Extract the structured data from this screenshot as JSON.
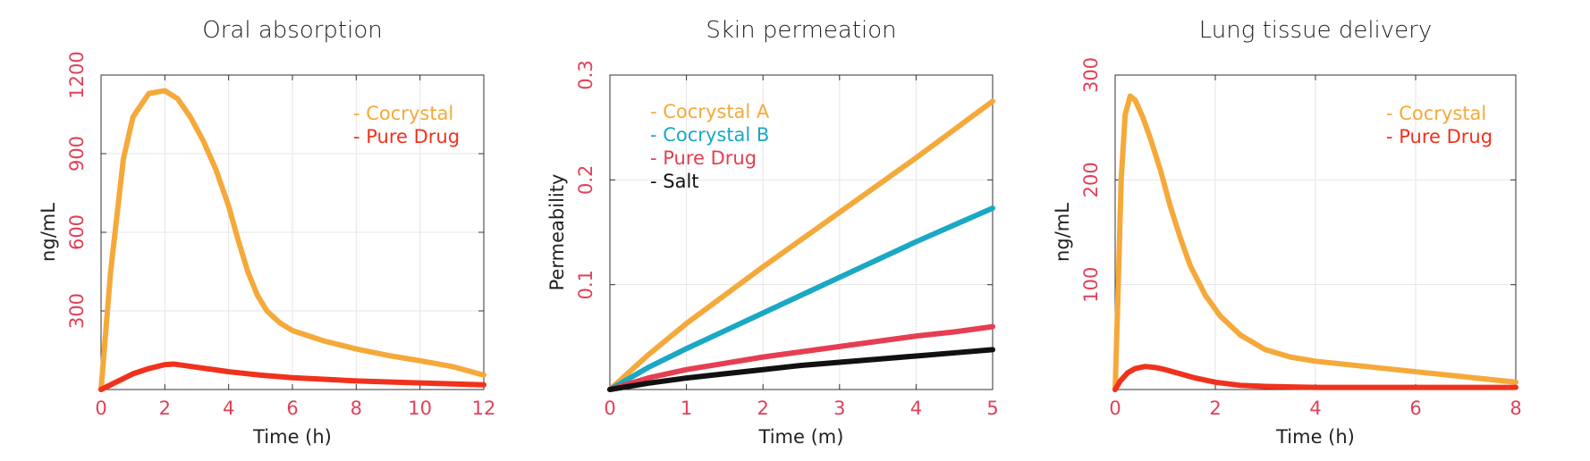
{
  "chart_data": [
    {
      "type": "line",
      "title": "Oral absorption",
      "xlabel": "Time (h)",
      "ylabel": "ng/mL",
      "xlim": [
        0,
        12
      ],
      "ylim": [
        0,
        1200
      ],
      "xticks": [
        0,
        2,
        4,
        6,
        8,
        10,
        12
      ],
      "yticks": [
        300,
        600,
        900,
        1200
      ],
      "grid": true,
      "legend_position": "top-right",
      "series": [
        {
          "name": "Cocrystal",
          "color": "#f5a93a",
          "x": [
            0,
            0.3,
            0.7,
            1.0,
            1.5,
            2.0,
            2.4,
            2.8,
            3.2,
            3.6,
            4.0,
            4.3,
            4.6,
            4.9,
            5.2,
            5.6,
            6.0,
            7.0,
            8.0,
            9.0,
            10.0,
            11.0,
            12.0
          ],
          "y": [
            0,
            450,
            880,
            1040,
            1130,
            1140,
            1110,
            1040,
            950,
            840,
            700,
            570,
            450,
            360,
            300,
            255,
            225,
            185,
            155,
            130,
            110,
            88,
            55
          ]
        },
        {
          "name": "Pure Drug",
          "color": "#f0321c",
          "x": [
            0,
            0.5,
            1.0,
            1.5,
            2.0,
            2.3,
            3.0,
            4.0,
            5.0,
            6.0,
            8.0,
            10.0,
            12.0
          ],
          "y": [
            0,
            30,
            60,
            80,
            95,
            97,
            85,
            68,
            55,
            45,
            33,
            25,
            18
          ]
        }
      ]
    },
    {
      "type": "line",
      "title": "Skin permeation",
      "xlabel": "Time (m)",
      "ylabel": "Permeability",
      "xlim": [
        0,
        5
      ],
      "ylim": [
        0,
        0.3
      ],
      "xticks": [
        0,
        1,
        2,
        3,
        4,
        5
      ],
      "yticks": [
        0.1,
        0.2,
        0.3
      ],
      "grid": true,
      "legend_position": "top-left",
      "series": [
        {
          "name": "Cocrystal A",
          "color": "#f5a93a",
          "x": [
            0,
            0.5,
            1,
            1.5,
            2,
            2.5,
            3,
            3.5,
            4,
            4.5,
            5
          ],
          "y": [
            0,
            0.033,
            0.063,
            0.09,
            0.117,
            0.143,
            0.169,
            0.195,
            0.221,
            0.248,
            0.275
          ]
        },
        {
          "name": "Cocrystal B",
          "color": "#1aa8c4",
          "x": [
            0,
            0.5,
            1,
            1.5,
            2,
            2.5,
            3,
            3.5,
            4,
            4.5,
            5
          ],
          "y": [
            0,
            0.021,
            0.039,
            0.056,
            0.073,
            0.09,
            0.107,
            0.124,
            0.141,
            0.157,
            0.173
          ]
        },
        {
          "name": "Pure Drug",
          "color": "#e53e52",
          "x": [
            0,
            0.5,
            1,
            1.5,
            2,
            2.5,
            3,
            3.5,
            4,
            4.5,
            5
          ],
          "y": [
            0,
            0.011,
            0.019,
            0.025,
            0.031,
            0.036,
            0.041,
            0.046,
            0.051,
            0.055,
            0.06
          ]
        },
        {
          "name": "Salt",
          "color": "#111111",
          "x": [
            0,
            0.5,
            1,
            1.5,
            2,
            2.5,
            3,
            3.5,
            4,
            4.5,
            5
          ],
          "y": [
            0,
            0.006,
            0.011,
            0.015,
            0.019,
            0.023,
            0.026,
            0.029,
            0.032,
            0.035,
            0.038
          ]
        }
      ]
    },
    {
      "type": "line",
      "title": "Lung tissue delivery",
      "xlabel": "Time (h)",
      "ylabel": "ng/mL",
      "xlim": [
        0,
        8
      ],
      "ylim": [
        0,
        300
      ],
      "xticks": [
        0,
        2,
        4,
        6,
        8
      ],
      "yticks": [
        100,
        200,
        300
      ],
      "grid": true,
      "legend_position": "top-right",
      "series": [
        {
          "name": "Cocrystal",
          "color": "#f5a93a",
          "x": [
            0,
            0.05,
            0.12,
            0.2,
            0.3,
            0.4,
            0.55,
            0.7,
            0.9,
            1.1,
            1.3,
            1.5,
            1.8,
            2.1,
            2.5,
            3.0,
            3.5,
            4.0,
            5.0,
            6.0,
            7.0,
            8.0
          ],
          "y": [
            0,
            80,
            200,
            262,
            280,
            276,
            260,
            240,
            210,
            175,
            145,
            118,
            90,
            70,
            52,
            38,
            31,
            27,
            22,
            17,
            12,
            7
          ]
        },
        {
          "name": "Pure Drug",
          "color": "#f0321c",
          "x": [
            0,
            0.1,
            0.25,
            0.4,
            0.6,
            0.8,
            1.0,
            1.3,
            1.6,
            2.0,
            2.5,
            3.0,
            4.0,
            5.0,
            6.0,
            8.0
          ],
          "y": [
            0,
            8,
            16,
            20,
            22,
            21,
            19,
            15,
            11,
            7,
            4,
            3,
            2,
            2,
            2,
            2
          ]
        }
      ]
    }
  ]
}
